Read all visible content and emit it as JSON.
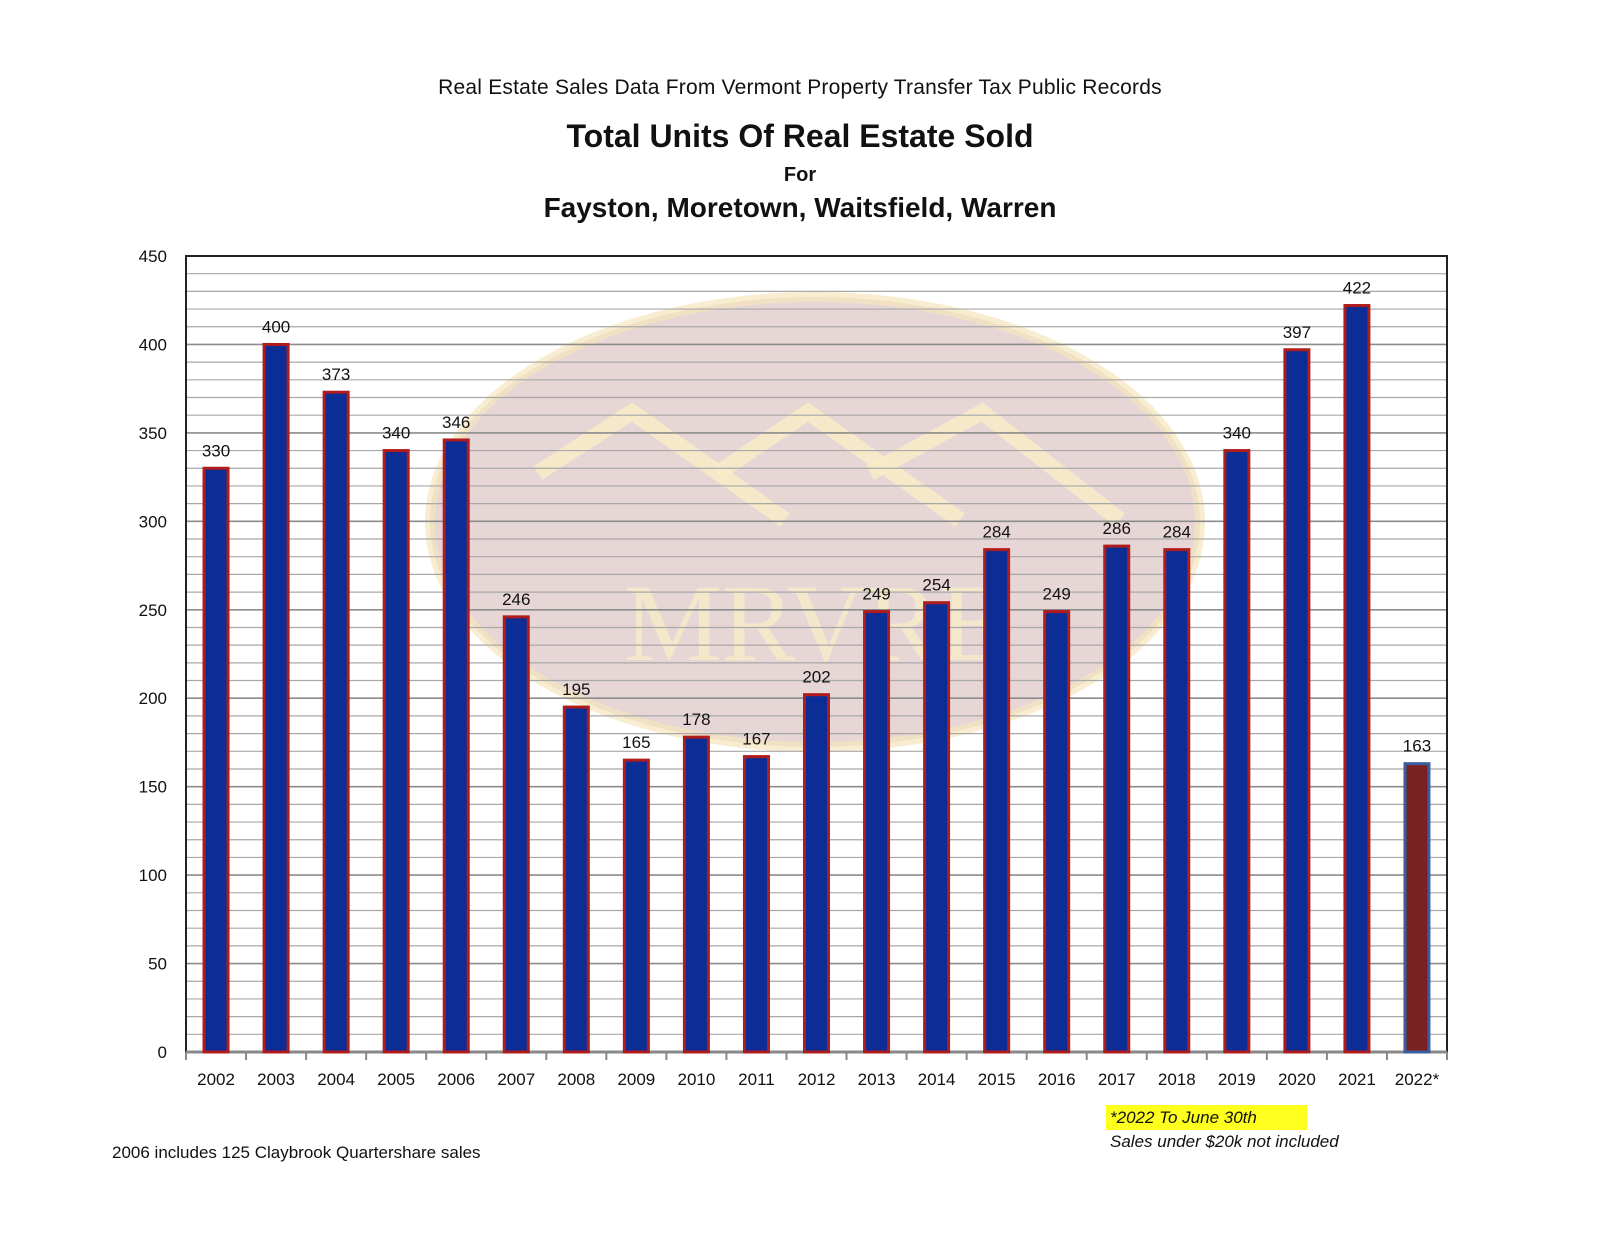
{
  "header": {
    "source_line": "Real Estate Sales Data From Vermont Property Transfer Tax Public Records",
    "title": "Total Units Of Real Estate Sold",
    "title_for": "For",
    "towns": "Fayston, Moretown, Waitsfield, Warren"
  },
  "watermark": {
    "text": "MRVRE"
  },
  "notes": {
    "highlight": "*2022 To June 30th",
    "exclusion": "Sales under $20k not included",
    "footnote": "2006 includes 125 Claybrook Quartershare sales"
  },
  "colors": {
    "bar_fill": "#0d2d96",
    "bar_border": "#b01c1c",
    "partial_fill": "#7a2121",
    "partial_border": "#3a5fa0",
    "grid": "#a8a8a8",
    "highlight": "#ffff1e"
  },
  "chart_data": {
    "type": "bar",
    "title": "Total Units Of Real Estate Sold",
    "subtitle": "Fayston, Moretown, Waitsfield, Warren",
    "xlabel": "",
    "ylabel": "",
    "ylim": [
      0,
      450
    ],
    "y_ticks": [
      0,
      50,
      100,
      150,
      200,
      250,
      300,
      350,
      400,
      450
    ],
    "grid": true,
    "legend": "none",
    "categories": [
      "2002",
      "2003",
      "2004",
      "2005",
      "2006",
      "2007",
      "2008",
      "2009",
      "2010",
      "2011",
      "2012",
      "2013",
      "2014",
      "2015",
      "2016",
      "2017",
      "2018",
      "2019",
      "2020",
      "2021",
      "2022*"
    ],
    "values": [
      330,
      400,
      373,
      340,
      346,
      246,
      195,
      165,
      178,
      167,
      202,
      249,
      254,
      284,
      249,
      286,
      284,
      340,
      397,
      422,
      163
    ],
    "data_labels": [
      "330",
      "400",
      "373",
      "340",
      "346",
      "246",
      "195",
      "165",
      "178",
      "167",
      "202",
      "249",
      "254",
      "284",
      "249",
      "286",
      "284",
      "340",
      "397",
      "422",
      "163"
    ],
    "partial_year_index": 20
  }
}
